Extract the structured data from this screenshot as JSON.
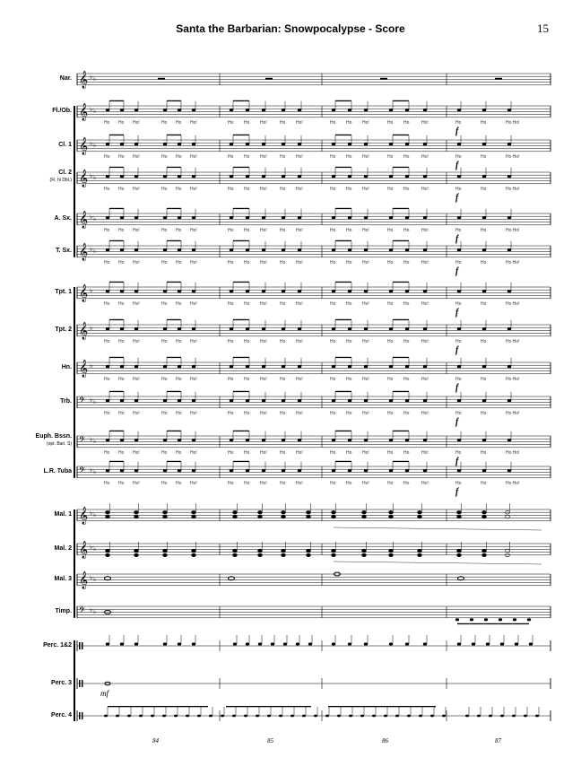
{
  "header": {
    "title": "Santa the Barbarian: Snowpocalypse - Score",
    "page_number": "15"
  },
  "instruments": [
    {
      "id": "nar",
      "label": "Nar.",
      "sub": ""
    },
    {
      "id": "fl",
      "label": "Fl./Ob.",
      "sub": ""
    },
    {
      "id": "cl1",
      "label": "Cl. 1",
      "sub": ""
    },
    {
      "id": "cl2",
      "label": "Cl. 2",
      "sub": "(Fl. hi Dbl.)"
    },
    {
      "id": "asx",
      "label": "A. Sx.",
      "sub": ""
    },
    {
      "id": "tsx",
      "label": "T. Sx.",
      "sub": ""
    },
    {
      "id": "tpt1",
      "label": "Tpt. 1",
      "sub": ""
    },
    {
      "id": "tpt2",
      "label": "Tpt. 2",
      "sub": ""
    },
    {
      "id": "hn",
      "label": "Hn.",
      "sub": ""
    },
    {
      "id": "trb",
      "label": "Trb.",
      "sub": ""
    },
    {
      "id": "euph",
      "label": "Euph. Bssn.",
      "sub": "(opt. Bari. S)"
    },
    {
      "id": "tuba",
      "label": "L.R. Tuba",
      "sub": ""
    },
    {
      "id": "mal1",
      "label": "Mal. 1",
      "sub": ""
    },
    {
      "id": "mal2",
      "label": "Mal. 2",
      "sub": ""
    },
    {
      "id": "mal3",
      "label": "Mal. 3",
      "sub": ""
    },
    {
      "id": "timp",
      "label": "Timp.",
      "sub": ""
    },
    {
      "id": "perc12",
      "label": "Perc. 1&2",
      "sub": ""
    },
    {
      "id": "perc3",
      "label": "Perc. 3",
      "sub": ""
    },
    {
      "id": "perc4",
      "label": "Perc. 4",
      "sub": ""
    }
  ],
  "lyrics": {
    "pattern": [
      "Ho",
      "Ho",
      "Ho!",
      "Ho",
      "Ho",
      "Ho!"
    ],
    "pattern_85": [
      "Ho",
      "Ho",
      "Ho!"
    ],
    "pattern_87": [
      "Ho",
      "Ho",
      "Ho Ho!"
    ]
  },
  "dynamics": {
    "forte": "f",
    "mezzo_forte": "mf"
  },
  "measure_numbers": [
    "84",
    "85",
    "86",
    "87"
  ]
}
